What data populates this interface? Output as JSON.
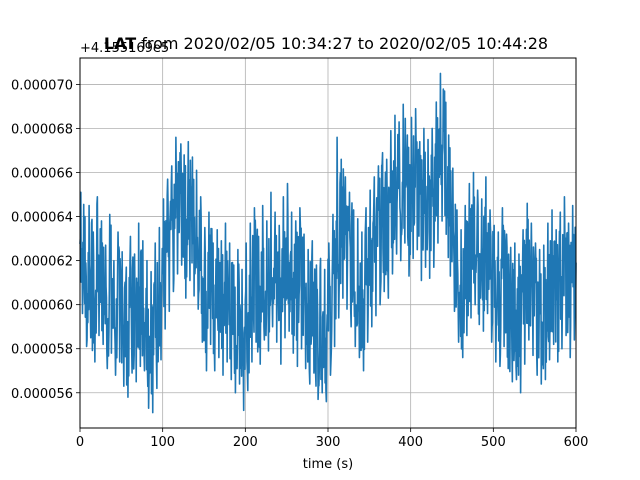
{
  "chart_data": {
    "type": "line",
    "title_bold": "LAT",
    "title_rest": " from 2020/02/05 10:34:27 to 2020/02/05 10:44:28",
    "offset_label": "+4.155169e5",
    "xlabel": "time (s)",
    "ylabel": "",
    "xlim": [
      0,
      600
    ],
    "ylim": [
      5.44e-05,
      7.12e-05
    ],
    "grid": true,
    "x_ticks": [
      0,
      100,
      200,
      300,
      400,
      500,
      600
    ],
    "x_tick_labels": [
      "0",
      "100",
      "200",
      "300",
      "400",
      "500",
      "600"
    ],
    "y_ticks": [
      5.6e-05,
      5.8e-05,
      6e-05,
      6.2e-05,
      6.4e-05,
      6.6e-05,
      6.8e-05,
      7e-05
    ],
    "y_tick_labels": [
      "0.000056",
      "0.000058",
      "0.000060",
      "0.000062",
      "0.000064",
      "0.000066",
      "0.000068",
      "0.000070"
    ],
    "color": "#1f77b4",
    "series": [
      {
        "name": "",
        "x": [
          0,
          5,
          10,
          15,
          20,
          25,
          30,
          35,
          40,
          45,
          50,
          55,
          60,
          65,
          70,
          75,
          80,
          85,
          90,
          95,
          100,
          105,
          110,
          115,
          120,
          125,
          130,
          135,
          140,
          145,
          150,
          155,
          160,
          165,
          170,
          175,
          180,
          185,
          190,
          195,
          200,
          205,
          210,
          215,
          220,
          225,
          230,
          235,
          240,
          245,
          250,
          255,
          260,
          265,
          270,
          275,
          280,
          285,
          290,
          295,
          300,
          305,
          310,
          315,
          320,
          325,
          330,
          335,
          340,
          345,
          350,
          355,
          360,
          365,
          370,
          375,
          380,
          385,
          390,
          395,
          400,
          405,
          410,
          415,
          420,
          425,
          430,
          435,
          440,
          445,
          450,
          455,
          460,
          465,
          470,
          475,
          480,
          485,
          490,
          495,
          500,
          505,
          510,
          515,
          520,
          525,
          530,
          535,
          540,
          545,
          550,
          555,
          560,
          565,
          570,
          575,
          580,
          585,
          590,
          595,
          600
        ],
        "y": [
          6.28e-05,
          6.05e-05,
          6.15e-05,
          5.98e-05,
          6.2e-05,
          6.08e-05,
          5.96e-05,
          6.12e-05,
          5.92e-05,
          6.03e-05,
          5.98e-05,
          5.88e-05,
          6.01e-05,
          5.94e-05,
          6.06e-05,
          5.99e-05,
          5.91e-05,
          5.86e-05,
          5.98e-05,
          6.05e-05,
          6.18e-05,
          6.26e-05,
          6.32e-05,
          6.45e-05,
          6.52e-05,
          6.38e-05,
          6.44e-05,
          6.36e-05,
          6.3e-05,
          6.18e-05,
          6.04e-05,
          6.12e-05,
          5.98e-05,
          6.05e-05,
          5.99e-05,
          6.07e-05,
          5.97e-05,
          5.89e-05,
          5.94e-05,
          5.86e-05,
          5.97e-05,
          6.07e-05,
          6.13e-05,
          6.02e-05,
          6.15e-05,
          6.08e-05,
          6.21e-05,
          6.12e-05,
          6.06e-05,
          6.18e-05,
          6.25e-05,
          6.12e-05,
          6.07e-05,
          6.15e-05,
          6.03e-05,
          5.95e-05,
          5.99e-05,
          5.88e-05,
          5.91e-05,
          5.85e-05,
          5.98e-05,
          6.1e-05,
          6.26e-05,
          6.36e-05,
          6.29e-05,
          6.21e-05,
          6.13e-05,
          6.09e-05,
          6.02e-05,
          6.14e-05,
          6.22e-05,
          6.27e-05,
          6.32e-05,
          6.38e-05,
          6.35e-05,
          6.48e-05,
          6.56e-05,
          6.52e-05,
          6.61e-05,
          6.46e-05,
          6.54e-05,
          6.58e-05,
          6.43e-05,
          6.5e-05,
          6.44e-05,
          6.49e-05,
          6.62e-05,
          6.73e-05,
          6.66e-05,
          6.47e-05,
          6.31e-05,
          6.12e-05,
          6.03e-05,
          6.14e-05,
          6.24e-05,
          6.3e-05,
          6.21e-05,
          6.18e-05,
          6.27e-05,
          6.12e-05,
          6.05e-05,
          6.02e-05,
          6.13e-05,
          6.01e-05,
          5.95e-05,
          5.97e-05,
          5.92e-05,
          6.04e-05,
          6.16e-05,
          6.07e-05,
          5.98e-05,
          5.94e-05,
          5.96e-05,
          6.06e-05,
          6.13e-05,
          6.03e-05,
          6.12e-05,
          6.18e-05,
          6.06e-05,
          6.15e-05,
          6.2e-05
        ],
        "y_min": [
          5.96e-05,
          5.81e-05,
          5.85e-05,
          5.74e-05,
          5.86e-05,
          5.82e-05,
          5.71e-05,
          5.78e-05,
          5.68e-05,
          5.74e-05,
          5.63e-05,
          5.58e-05,
          5.69e-05,
          5.65e-05,
          5.72e-05,
          5.7e-05,
          5.53e-05,
          5.51e-05,
          5.62e-05,
          5.75e-05,
          5.89e-05,
          5.97e-05,
          6.06e-05,
          6.14e-05,
          6.18e-05,
          6.03e-05,
          6.11e-05,
          6.04e-05,
          5.98e-05,
          5.83e-05,
          5.7e-05,
          5.82e-05,
          5.7e-05,
          5.76e-05,
          5.68e-05,
          5.74e-05,
          5.66e-05,
          5.6e-05,
          5.64e-05,
          5.52e-05,
          5.61e-05,
          5.74e-05,
          5.83e-05,
          5.73e-05,
          5.84e-05,
          5.79e-05,
          5.9e-05,
          5.83e-05,
          5.73e-05,
          5.85e-05,
          5.88e-05,
          5.78e-05,
          5.72e-05,
          5.8e-05,
          5.71e-05,
          5.64e-05,
          5.69e-05,
          5.57e-05,
          5.6e-05,
          5.56e-05,
          5.68e-05,
          5.81e-05,
          5.94e-05,
          6.03e-05,
          5.98e-05,
          5.9e-05,
          5.81e-05,
          5.76e-05,
          5.7e-05,
          5.83e-05,
          5.9e-05,
          5.95e-05,
          6e-05,
          6.06e-05,
          6.03e-05,
          6.14e-05,
          6.23e-05,
          6.2e-05,
          6.28e-05,
          6.13e-05,
          6.21e-05,
          6.25e-05,
          6.11e-05,
          6.17e-05,
          6.12e-05,
          6.17e-05,
          6.28e-05,
          6.38e-05,
          6.32e-05,
          6.13e-05,
          5.97e-05,
          5.83e-05,
          5.76e-05,
          5.86e-05,
          5.94e-05,
          6e-05,
          5.91e-05,
          5.88e-05,
          5.96e-05,
          5.83e-05,
          5.74e-05,
          5.72e-05,
          5.81e-05,
          5.71e-05,
          5.65e-05,
          5.66e-05,
          5.6e-05,
          5.73e-05,
          5.84e-05,
          5.77e-05,
          5.68e-05,
          5.64e-05,
          5.66e-05,
          5.75e-05,
          5.82e-05,
          5.74e-05,
          5.8e-05,
          5.86e-05,
          5.76e-05,
          5.84e-05,
          5.89e-05
        ],
        "y_max": [
          6.51e-05,
          6.4e-05,
          6.45e-05,
          6.33e-05,
          6.49e-05,
          6.38e-05,
          6.27e-05,
          6.41e-05,
          6.2e-05,
          6.33e-05,
          6.24e-05,
          6.17e-05,
          6.31e-05,
          6.23e-05,
          6.37e-05,
          6.29e-05,
          6.2e-05,
          6.15e-05,
          6.28e-05,
          6.35e-05,
          6.48e-05,
          6.57e-05,
          6.63e-05,
          6.76e-05,
          6.69e-05,
          6.68e-05,
          6.74e-05,
          6.67e-05,
          6.61e-05,
          6.49e-05,
          6.35e-05,
          6.42e-05,
          6.28e-05,
          6.34e-05,
          6.29e-05,
          6.37e-05,
          6.28e-05,
          6.18e-05,
          6.25e-05,
          6.16e-05,
          6.28e-05,
          6.37e-05,
          6.44e-05,
          6.31e-05,
          6.45e-05,
          6.38e-05,
          6.51e-05,
          6.42e-05,
          6.36e-05,
          6.49e-05,
          6.55e-05,
          6.42e-05,
          6.38e-05,
          6.44e-05,
          6.32e-05,
          6.25e-05,
          6.29e-05,
          6.18e-05,
          6.21e-05,
          6.16e-05,
          6.28e-05,
          6.41e-05,
          6.76e-05,
          6.66e-05,
          6.58e-05,
          6.51e-05,
          6.43e-05,
          6.39e-05,
          6.33e-05,
          6.44e-05,
          6.52e-05,
          6.58e-05,
          6.63e-05,
          6.69e-05,
          6.66e-05,
          6.79e-05,
          6.86e-05,
          6.83e-05,
          6.91e-05,
          6.77e-05,
          6.85e-05,
          6.89e-05,
          6.74e-05,
          6.8e-05,
          6.75e-05,
          6.8e-05,
          6.92e-05,
          7.05e-05,
          6.97e-05,
          6.77e-05,
          6.62e-05,
          6.43e-05,
          6.34e-05,
          6.45e-05,
          6.55e-05,
          6.6e-05,
          6.52e-05,
          6.48e-05,
          6.58e-05,
          6.43e-05,
          6.36e-05,
          6.33e-05,
          6.44e-05,
          6.32e-05,
          6.26e-05,
          6.28e-05,
          6.23e-05,
          6.34e-05,
          6.46e-05,
          6.37e-05,
          6.28e-05,
          6.25e-05,
          6.27e-05,
          6.37e-05,
          6.43e-05,
          6.34e-05,
          6.42e-05,
          6.49e-05,
          6.37e-05,
          6.45e-05,
          6.51e-05
        ]
      }
    ]
  }
}
